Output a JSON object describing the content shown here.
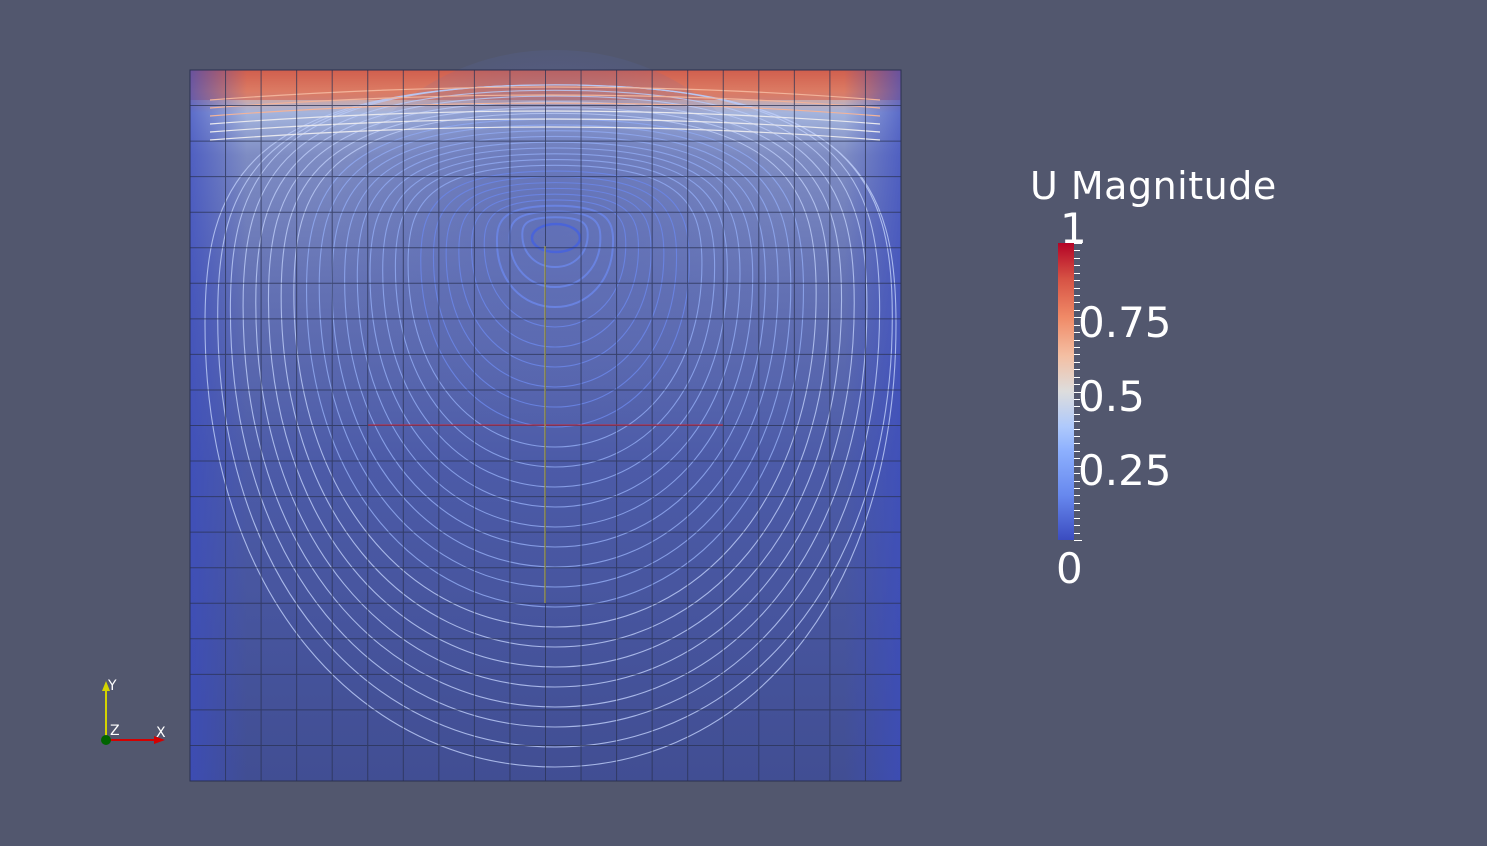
{
  "legend": {
    "title": "U Magnitude",
    "labels": [
      "1",
      "0.75",
      "0.5",
      "0.25",
      "0"
    ],
    "values": [
      1,
      0.75,
      0.5,
      0.25,
      0
    ],
    "colormap": [
      "#3b4cc0",
      "#8db0fe",
      "#dddddd",
      "#f4987a",
      "#b40426"
    ]
  },
  "axes": {
    "x_label": "X",
    "y_label": "Y",
    "z_label": "Z",
    "x_color": "#d40000",
    "y_color": "#d4d400",
    "z_color": "#006400"
  },
  "scene": {
    "background": "#52576e",
    "mesh_divisions": 20,
    "field": "U Magnitude",
    "representation": "surface-with-edges-and-streamlines"
  }
}
